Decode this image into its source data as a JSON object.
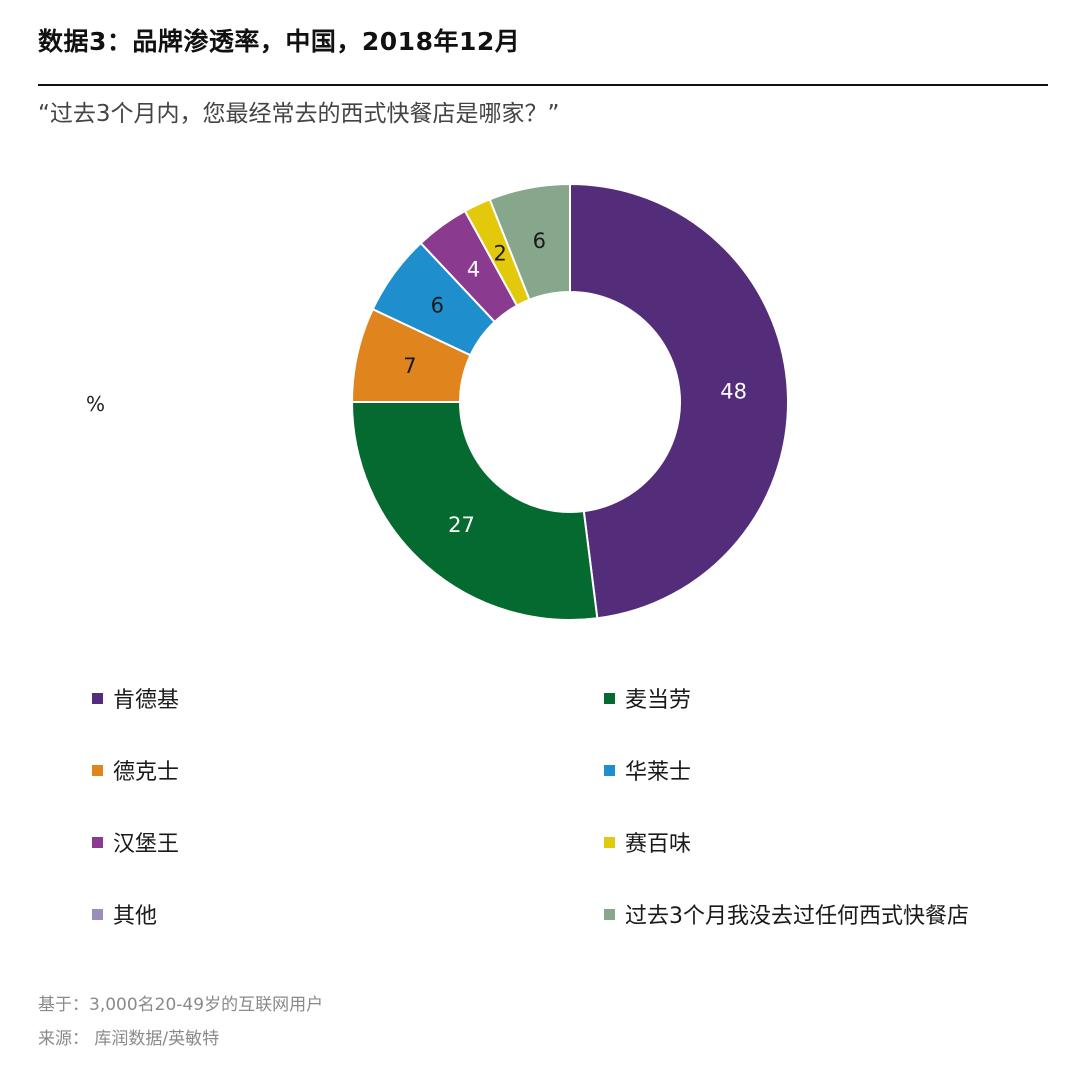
{
  "title": "数据3：品牌渗透率，中国，2018年12月",
  "subtitle": "“过去3个月内，您最经常去的西式快餐店是哪家？”",
  "unit_label": "%",
  "footnotes": {
    "base": "基于：3,000名20-49岁的互联网用户",
    "source": "来源： 库润数据/英敏特"
  },
  "chart_data": {
    "type": "pie",
    "donut": true,
    "unit": "%",
    "slices": [
      {
        "name": "肯德基",
        "value": 48,
        "color": "#542d7a",
        "label_color": "#ffffff"
      },
      {
        "name": "麦当劳",
        "value": 27,
        "color": "#056a2f",
        "label_color": "#ffffff"
      },
      {
        "name": "德克士",
        "value": 7,
        "color": "#e0841e",
        "label_color": "#1a1a1a"
      },
      {
        "name": "华莱士",
        "value": 6,
        "color": "#1e8fcc",
        "label_color": "#1a1a1a"
      },
      {
        "name": "汉堡王",
        "value": 4,
        "color": "#8a3b8f",
        "label_color": "#ffffff"
      },
      {
        "name": "赛百味",
        "value": 2,
        "color": "#e3c90b",
        "label_color": "#1a1a1a"
      },
      {
        "name": "其他",
        "value": 0,
        "color": "#9a8dbc",
        "label_color": "#1a1a1a"
      },
      {
        "name": "过去3个月我没去过任何西式快餐店",
        "value": 6,
        "color": "#86a78b",
        "label_color": "#1a1a1a"
      }
    ],
    "legend": {
      "placement": "bottom",
      "columns": 2,
      "items": [
        {
          "label": "肯德基",
          "color": "#542d7a"
        },
        {
          "label": "麦当劳",
          "color": "#056a2f"
        },
        {
          "label": "德克士",
          "color": "#e0841e"
        },
        {
          "label": "华莱士",
          "color": "#1e8fcc"
        },
        {
          "label": "汉堡王",
          "color": "#8a3b8f"
        },
        {
          "label": "赛百味",
          "color": "#e3c90b"
        },
        {
          "label": "其他",
          "color": "#9a8dbc"
        },
        {
          "label": "过去3个月我没去过任何西式快餐店",
          "color": "#86a78b"
        }
      ]
    }
  }
}
